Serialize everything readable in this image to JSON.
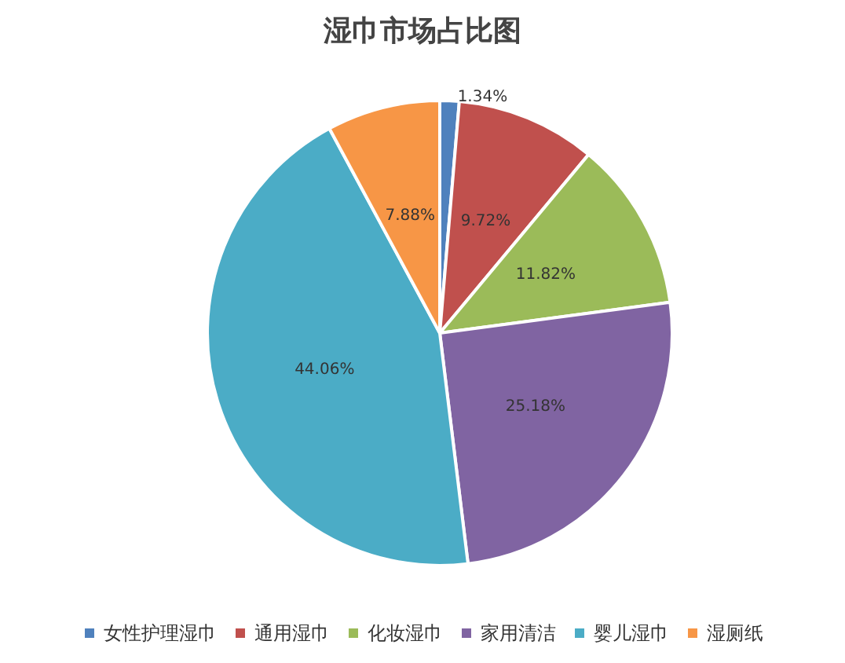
{
  "chart_data": {
    "type": "pie",
    "title": "湿巾市场占比图",
    "categories": [
      "女性护理湿巾",
      "通用湿巾",
      "化妆湿巾",
      "家用清洁",
      "婴儿湿巾",
      "湿厕纸"
    ],
    "values": [
      1.34,
      9.72,
      11.82,
      25.18,
      44.06,
      7.88
    ],
    "value_labels": [
      "1.34%",
      "9.72%",
      "11.82%",
      "25.18%",
      "44.06%",
      "7.88%"
    ],
    "colors": [
      "#4f81bd",
      "#c0504d",
      "#9bbb59",
      "#8064a2",
      "#4bacc6",
      "#f79646"
    ],
    "legend": "bottom"
  }
}
